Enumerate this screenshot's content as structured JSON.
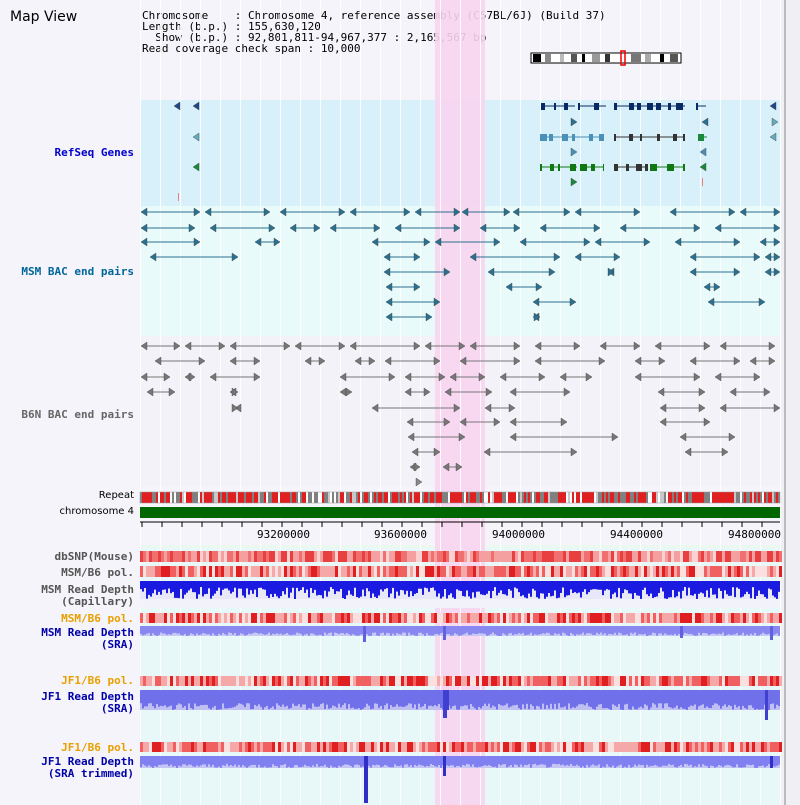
{
  "app": {
    "title": "Map View"
  },
  "info": {
    "chromosome_label": "Chromosome    : ",
    "chromosome_value": "Chromosome 4, reference assembly (C57BL/6J) (Build 37)",
    "length_label": "Length (b.p.) : ",
    "length_value": "155,630,120",
    "show_label": "Show (b.p.) : ",
    "show_value": "92,801,811-94,967,377 : 2,165,567 bp",
    "coverage_label": "Read coverage check span : ",
    "coverage_value": "10,000"
  },
  "tracks": {
    "refseq": {
      "label": "RefSeq Genes",
      "color": "#0000cc"
    },
    "msm_bac": {
      "label": "MSM BAC end pairs",
      "color": "#006699"
    },
    "b6n_bac": {
      "label": "B6N BAC end pairs",
      "color": "#666666"
    },
    "repeat": {
      "label": "Repeat"
    },
    "chromosome": {
      "label": "chromosome 4"
    },
    "dbsnp": {
      "label": "dbSNP(Mouse)"
    },
    "msm_b6_pol": {
      "label": "MSM/B6 pol."
    },
    "msm_depth_cap": {
      "line1": "MSM Read Depth",
      "line2": "(Capillary)"
    },
    "msm_b6_pol2": {
      "label": "MSM/B6 pol."
    },
    "msm_depth_sra": {
      "line1": "MSM Read Depth",
      "line2": "(SRA)"
    },
    "jf1_b6_pol": {
      "label": "JF1/B6 pol."
    },
    "jf1_depth_sra": {
      "line1": "JF1 Read Depth",
      "line2": "(SRA)"
    },
    "jf1_b6_pol2": {
      "label": "JF1/B6 pol."
    },
    "jf1_depth_trim": {
      "line1": "JF1 Read Depth",
      "line2": "(SRA trimmed)"
    }
  },
  "axis": {
    "ticks": [
      "93200000",
      "93600000",
      "94000000",
      "94400000",
      "94800000"
    ]
  },
  "colors": {
    "highlight": "#f5d0f0",
    "refseq_bg": "#d8f0fa",
    "msm_bg": "#e8fafa",
    "snp_red": "#e83030",
    "depth_blue": "#2020e0"
  }
}
